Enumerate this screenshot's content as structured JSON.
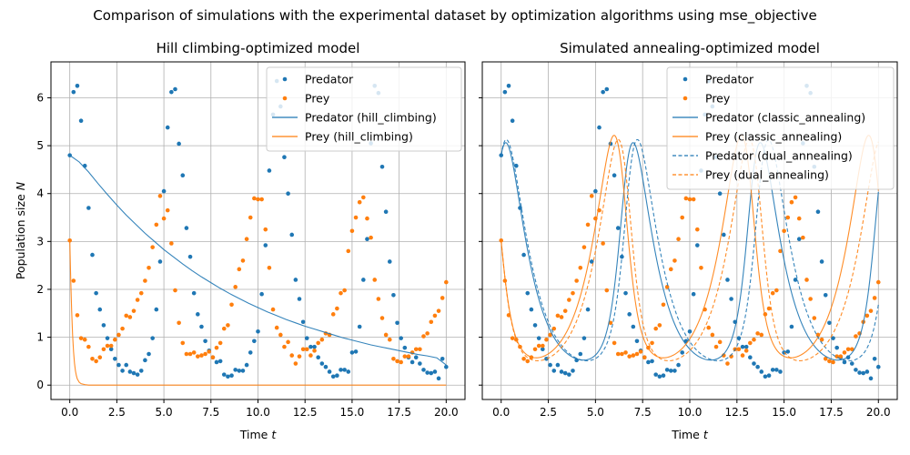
{
  "suptitle": "Comparison of simulations with the experimental dataset by optimization algorithms using mse_objective",
  "colors": {
    "predator": "#1f77b4",
    "prey": "#ff7f0e"
  },
  "chart_data": [
    {
      "type": "scatter+line",
      "title": "Hill climbing-optimized model",
      "xlabel": "Time t",
      "ylabel": "Population size N",
      "xlim": [
        -1.0,
        21.0
      ],
      "ylim": [
        -0.3,
        6.75
      ],
      "xticks": [
        0.0,
        2.5,
        5.0,
        7.5,
        10.0,
        12.5,
        15.0,
        17.5,
        20.0
      ],
      "xtick_labels": [
        "0.0",
        "2.5",
        "5.0",
        "7.5",
        "10.0",
        "12.5",
        "15.0",
        "17.5",
        "20.0"
      ],
      "yticks": [
        0,
        1,
        2,
        3,
        4,
        5,
        6
      ],
      "ytick_labels": [
        "0",
        "1",
        "2",
        "3",
        "4",
        "5",
        "6"
      ],
      "grid": true,
      "legend_position": "top-right",
      "legend": [
        "Predator",
        "Prey",
        "Predator (hill_climbing)",
        "Prey (hill_climbing)"
      ],
      "series": [
        {
          "name": "Predator",
          "kind": "scatter",
          "color": "#1f77b4",
          "x": [
            0.0,
            0.2,
            0.4,
            0.6,
            0.8,
            1.0,
            1.2,
            1.4,
            1.6,
            1.8,
            2.0,
            2.2,
            2.4,
            2.6,
            2.8,
            3.0,
            3.2,
            3.4,
            3.6,
            3.8,
            4.0,
            4.2,
            4.4,
            4.6,
            4.8,
            5.0,
            5.2,
            5.4,
            5.6,
            5.8,
            6.0,
            6.2,
            6.4,
            6.6,
            6.8,
            7.0,
            7.2,
            7.4,
            7.6,
            7.8,
            8.0,
            8.2,
            8.4,
            8.6,
            8.8,
            9.0,
            9.2,
            9.4,
            9.6,
            9.8,
            10.0,
            10.2,
            10.4,
            10.6,
            10.8,
            11.0,
            11.2,
            11.4,
            11.6,
            11.8,
            12.0,
            12.2,
            12.4,
            12.6,
            12.8,
            13.0,
            13.2,
            13.4,
            13.6,
            13.8,
            14.0,
            14.2,
            14.4,
            14.6,
            14.8,
            15.0,
            15.2,
            15.4,
            15.6,
            15.8,
            16.0,
            16.2,
            16.4,
            16.6,
            16.8,
            17.0,
            17.2,
            17.4,
            17.6,
            17.8,
            18.0,
            18.2,
            18.4,
            18.6,
            18.8,
            19.0,
            19.2,
            19.4,
            19.6,
            19.8,
            20.0
          ],
          "y": [
            4.8,
            6.12,
            6.25,
            5.52,
            4.58,
            3.7,
            2.72,
            1.92,
            1.58,
            1.25,
            0.98,
            0.75,
            0.55,
            0.42,
            0.3,
            0.42,
            0.28,
            0.25,
            0.22,
            0.3,
            0.52,
            0.65,
            0.98,
            1.58,
            2.58,
            4.05,
            5.38,
            6.12,
            6.18,
            5.04,
            4.38,
            3.28,
            2.68,
            1.92,
            1.48,
            1.22,
            0.92,
            0.72,
            0.58,
            0.48,
            0.5,
            0.22,
            0.18,
            0.2,
            0.32,
            0.3,
            0.3,
            0.42,
            0.68,
            0.92,
            1.12,
            1.9,
            2.92,
            4.48,
            5.65,
            6.35,
            5.82,
            4.76,
            4.0,
            3.14,
            2.2,
            1.8,
            1.32,
            0.98,
            0.8,
            0.8,
            0.58,
            0.45,
            0.38,
            0.28,
            0.18,
            0.2,
            0.32,
            0.32,
            0.28,
            0.68,
            0.7,
            1.22,
            2.2,
            3.05,
            5.05,
            6.25,
            6.1,
            4.56,
            3.62,
            2.58,
            1.88,
            1.3,
            0.98,
            0.78,
            0.58,
            0.48,
            0.58,
            0.45,
            0.32,
            0.26,
            0.25,
            0.28,
            0.14,
            0.55,
            0.38
          ]
        },
        {
          "name": "Prey",
          "kind": "scatter",
          "color": "#ff7f0e",
          "x": [
            0.0,
            0.2,
            0.4,
            0.6,
            0.8,
            1.0,
            1.2,
            1.4,
            1.6,
            1.8,
            2.0,
            2.2,
            2.4,
            2.6,
            2.8,
            3.0,
            3.2,
            3.4,
            3.6,
            3.8,
            4.0,
            4.2,
            4.4,
            4.6,
            4.8,
            5.0,
            5.2,
            5.4,
            5.6,
            5.8,
            6.0,
            6.2,
            6.4,
            6.6,
            6.8,
            7.0,
            7.2,
            7.4,
            7.6,
            7.8,
            8.0,
            8.2,
            8.4,
            8.6,
            8.8,
            9.0,
            9.2,
            9.4,
            9.6,
            9.8,
            10.0,
            10.2,
            10.4,
            10.6,
            10.8,
            11.0,
            11.2,
            11.4,
            11.6,
            11.8,
            12.0,
            12.2,
            12.4,
            12.6,
            12.8,
            13.0,
            13.2,
            13.4,
            13.6,
            13.8,
            14.0,
            14.2,
            14.4,
            14.6,
            14.8,
            15.0,
            15.2,
            15.4,
            15.6,
            15.8,
            16.0,
            16.2,
            16.4,
            16.6,
            16.8,
            17.0,
            17.2,
            17.4,
            17.6,
            17.8,
            18.0,
            18.2,
            18.4,
            18.6,
            18.8,
            19.0,
            19.2,
            19.4,
            19.6,
            19.8,
            20.0
          ],
          "y": [
            3.02,
            2.18,
            1.46,
            0.98,
            0.95,
            0.8,
            0.55,
            0.5,
            0.58,
            0.75,
            0.82,
            0.82,
            0.95,
            1.05,
            1.18,
            1.45,
            1.42,
            1.55,
            1.78,
            1.92,
            2.18,
            2.45,
            2.88,
            3.35,
            3.95,
            3.48,
            3.65,
            2.96,
            1.98,
            1.3,
            0.88,
            0.65,
            0.65,
            0.68,
            0.6,
            0.62,
            0.65,
            0.7,
            0.58,
            0.78,
            0.88,
            1.18,
            1.25,
            1.68,
            2.05,
            2.42,
            2.6,
            3.05,
            3.5,
            3.9,
            3.88,
            3.88,
            3.25,
            2.45,
            1.58,
            1.2,
            1.05,
            0.8,
            0.9,
            0.62,
            0.45,
            0.6,
            0.75,
            0.75,
            0.62,
            0.72,
            0.88,
            0.95,
            1.08,
            1.05,
            1.48,
            1.6,
            1.92,
            1.98,
            2.8,
            3.22,
            3.5,
            3.82,
            3.92,
            3.48,
            3.08,
            2.2,
            1.8,
            1.4,
            1.05,
            0.95,
            0.55,
            0.5,
            0.48,
            0.6,
            0.6,
            0.68,
            0.75,
            0.75,
            1.02,
            1.08,
            1.32,
            1.45,
            1.55,
            1.82,
            2.15
          ]
        },
        {
          "name": "Predator (hill_climbing)",
          "kind": "line",
          "color": "#1f77b4",
          "x": [
            0.0,
            0.5,
            1.0,
            1.5,
            2.0,
            2.5,
            3.0,
            3.5,
            4.0,
            4.5,
            5.0,
            5.5,
            6.0,
            6.5,
            7.0,
            7.5,
            8.0,
            8.5,
            9.0,
            9.5,
            10.0,
            10.5,
            11.0,
            11.5,
            12.0,
            12.5,
            13.0,
            13.5,
            14.0,
            14.5,
            15.0,
            15.5,
            16.0,
            16.5,
            17.0,
            17.5,
            18.0,
            18.5,
            19.0,
            19.5,
            20.0
          ],
          "y": [
            4.8,
            4.66,
            4.45,
            4.21,
            3.98,
            3.76,
            3.55,
            3.36,
            3.17,
            3.0,
            2.83,
            2.68,
            2.53,
            2.39,
            2.26,
            2.14,
            2.02,
            1.91,
            1.81,
            1.71,
            1.62,
            1.53,
            1.45,
            1.37,
            1.3,
            1.23,
            1.17,
            1.11,
            1.05,
            0.99,
            0.94,
            0.89,
            0.84,
            0.8,
            0.76,
            0.72,
            0.68,
            0.64,
            0.61,
            0.57,
            0.42
          ]
        },
        {
          "name": "Prey (hill_climbing)",
          "kind": "line",
          "color": "#ff7f0e",
          "x": [
            0.0,
            0.05,
            0.1,
            0.15,
            0.2,
            0.25,
            0.3,
            0.35,
            0.4,
            0.5,
            0.6,
            0.8,
            1.0,
            1.5,
            2.0,
            5.0,
            10.0,
            15.0,
            20.0
          ],
          "y": [
            3.02,
            2.2,
            1.55,
            1.05,
            0.7,
            0.46,
            0.3,
            0.2,
            0.13,
            0.06,
            0.03,
            0.01,
            0.0,
            0.0,
            0.0,
            0.0,
            0.0,
            0.0,
            0.0
          ]
        }
      ]
    },
    {
      "type": "scatter+line",
      "title": "Simulated annealing-optimized model",
      "xlabel": "Time t",
      "ylabel": "",
      "xlim": [
        -1.0,
        21.0
      ],
      "ylim": [
        -0.3,
        6.75
      ],
      "xticks": [
        0.0,
        2.5,
        5.0,
        7.5,
        10.0,
        12.5,
        15.0,
        17.5,
        20.0
      ],
      "xtick_labels": [
        "0.0",
        "2.5",
        "5.0",
        "7.5",
        "10.0",
        "12.5",
        "15.0",
        "17.5",
        "20.0"
      ],
      "yticks": [
        0,
        1,
        2,
        3,
        4,
        5,
        6
      ],
      "ytick_labels": [],
      "grid": true,
      "legend_position": "top-right",
      "legend": [
        "Predator",
        "Prey",
        "Predator (classic_annealing)",
        "Prey (classic_annealing)",
        "Predator (dual_annealing)",
        "Prey (dual_annealing)"
      ],
      "series": [
        {
          "name": "Predator",
          "kind": "scatter",
          "color": "#1f77b4",
          "same_as_panel": 0
        },
        {
          "name": "Prey",
          "kind": "scatter",
          "color": "#ff7f0e",
          "same_as_panel": 0
        },
        {
          "name": "Predator (classic_annealing)",
          "kind": "line",
          "dash": "solid",
          "color": "#1f77b4",
          "lv_params": {
            "a": 1.0,
            "b": 0.5,
            "c": 1.05,
            "d": 0.5,
            "x0": 3.02,
            "y0": 4.8
          }
        },
        {
          "name": "Prey (classic_annealing)",
          "kind": "line",
          "dash": "solid",
          "color": "#ff7f0e",
          "lv_params": {
            "a": 1.0,
            "b": 0.5,
            "c": 1.05,
            "d": 0.5,
            "x0": 3.02,
            "y0": 4.8
          }
        },
        {
          "name": "Predator (dual_annealing)",
          "kind": "line",
          "dash": "dashed",
          "color": "#1f77b4",
          "lv_params": {
            "a": 1.0,
            "b": 0.5,
            "c": 1.0,
            "d": 0.5,
            "x0": 3.02,
            "y0": 4.8
          }
        },
        {
          "name": "Prey (dual_annealing)",
          "kind": "line",
          "dash": "dashed",
          "color": "#ff7f0e",
          "lv_params": {
            "a": 1.0,
            "b": 0.5,
            "c": 1.0,
            "d": 0.5,
            "x0": 3.02,
            "y0": 4.8
          }
        }
      ]
    }
  ]
}
